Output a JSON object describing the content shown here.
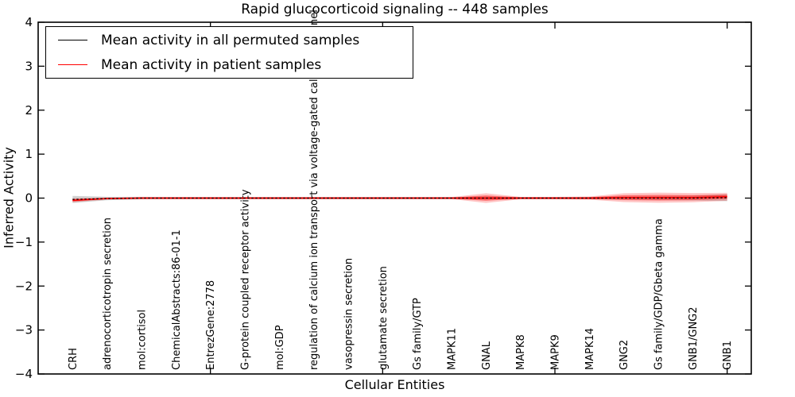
{
  "chart_data": {
    "type": "area",
    "title": "Rapid glucocorticoid signaling -- 448 samples",
    "xlabel": "Cellular Entities",
    "ylabel": "Inferred Activity",
    "ylim": [
      -4,
      4
    ],
    "xlim": [
      0,
      20.7
    ],
    "yticks": [
      4,
      3,
      2,
      1,
      0,
      -1,
      -2,
      -3,
      -4
    ],
    "yticklabels": [
      "4",
      "3",
      "2",
      "1",
      "0",
      "−1",
      "−2",
      "−3",
      "−4"
    ],
    "xticks_unlabeled": [
      5,
      10,
      15,
      20
    ],
    "grid": false,
    "legend_position": "upper left",
    "categories": [
      "CRH",
      "adrenocorticotropin secretion",
      "mol:cortisol",
      "ChemicalAbstracts:86-01-1",
      "EntrezGene:2778",
      "G-protein coupled receptor activity",
      "mol:GDP",
      "regulation of calcium ion transport via voltage-gated calcium channel",
      "vasopressin secretion",
      "glutamate secretion",
      "Gs family/GTP",
      "MAPK11",
      "GNAL",
      "MAPK8",
      "MAPK9",
      "MAPK14",
      "GNG2",
      "Gs family/GDP/Gbeta gamma",
      "GNB1/GNG2",
      "GNB1"
    ],
    "x": [
      1,
      2,
      3,
      4,
      5,
      6,
      7,
      8,
      9,
      10,
      11,
      12,
      13,
      14,
      15,
      16,
      17,
      18,
      19,
      20
    ],
    "series": [
      {
        "name": "Mean activity in all permuted samples",
        "color": "#000000",
        "line_style": "dashed",
        "mean": [
          -0.03,
          -0.01,
          0,
          0,
          0,
          0,
          0,
          0,
          0,
          0,
          0,
          0,
          0,
          0,
          0,
          0,
          0,
          0,
          0,
          0.01
        ],
        "std": [
          0.08,
          0.04,
          0.03,
          0.027,
          0.027,
          0.027,
          0.027,
          0.027,
          0.027,
          0.027,
          0.027,
          0.027,
          0.035,
          0.027,
          0.027,
          0.027,
          0.035,
          0.045,
          0.055,
          0.08
        ]
      },
      {
        "name": "Mean activity in patient samples",
        "color": "#ff0000",
        "line_style": "solid",
        "mean": [
          -0.05,
          -0.01,
          0,
          0,
          0,
          0,
          0,
          0,
          0,
          0,
          0,
          0,
          0,
          0,
          0,
          0,
          0.01,
          0.01,
          0.01,
          0.03
        ],
        "std": [
          0.045,
          0.022,
          0.022,
          0.022,
          0.022,
          0.022,
          0.022,
          0.022,
          0.022,
          0.022,
          0.022,
          0.022,
          0.11,
          0.027,
          0.027,
          0.036,
          0.1,
          0.115,
          0.105,
          0.09
        ]
      }
    ]
  }
}
